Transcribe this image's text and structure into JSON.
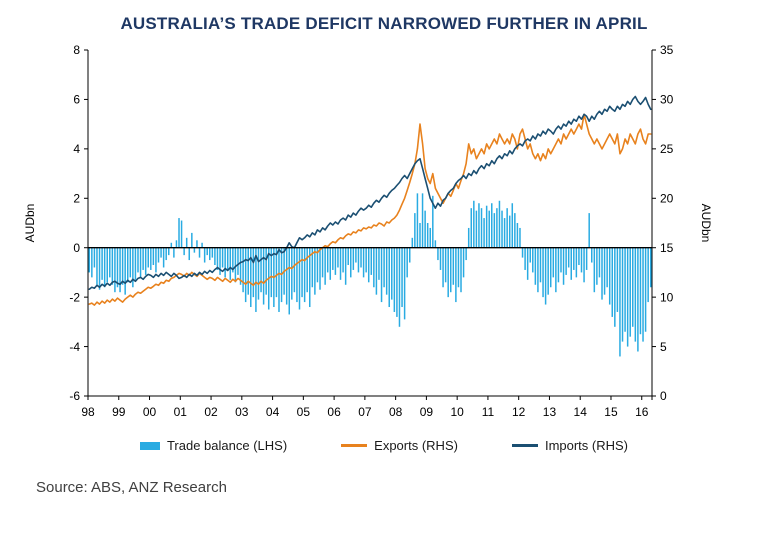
{
  "title": "AUSTRALIA’S TRADE DEFICIT NARROWED FURTHER IN APRIL",
  "source": "Source: ABS, ANZ Research",
  "chart_data": {
    "type": "bar",
    "subtype": "combo-bar-line-monthly",
    "x_unit": "monthly",
    "x_start": "1998-01",
    "x_end": "2016-04",
    "x_tick_labels": [
      "98",
      "99",
      "00",
      "01",
      "02",
      "03",
      "04",
      "05",
      "06",
      "07",
      "08",
      "09",
      "10",
      "11",
      "12",
      "13",
      "14",
      "15",
      "16"
    ],
    "left_axis": {
      "label": "AUDbn",
      "min": -6,
      "max": 8,
      "ticks": [
        8,
        6,
        4,
        2,
        0,
        -2,
        -4,
        -6
      ]
    },
    "right_axis": {
      "label": "AUDbn",
      "min": 0,
      "max": 35,
      "ticks": [
        35,
        30,
        25,
        20,
        15,
        10,
        5,
        0
      ]
    },
    "grid": "off",
    "legend_position": "bottom",
    "series": [
      {
        "name": "Trade balance (LHS)",
        "type": "bar",
        "axis": "left",
        "color": "#29abe2",
        "values": [
          -1.0,
          -1.2,
          -0.8,
          -1.5,
          -1.7,
          -1.3,
          -1.6,
          -1.4,
          -1.2,
          -1.5,
          -1.8,
          -1.6,
          -1.8,
          -1.5,
          -1.9,
          -1.4,
          -1.2,
          -1.6,
          -1.3,
          -1.0,
          -1.2,
          -0.9,
          -1.1,
          -0.8,
          -0.9,
          -0.7,
          -1.0,
          -0.6,
          -0.4,
          -0.8,
          -0.5,
          -0.3,
          0.2,
          -0.4,
          0.3,
          1.2,
          1.1,
          -0.3,
          0.4,
          -0.5,
          0.6,
          -0.2,
          0.3,
          -0.4,
          0.2,
          -0.6,
          -0.3,
          -0.5,
          -0.4,
          -0.7,
          -0.9,
          -1.1,
          -0.8,
          -1.2,
          -0.9,
          -1.3,
          -1.0,
          -1.4,
          -1.1,
          -1.5,
          -1.8,
          -2.2,
          -1.9,
          -2.4,
          -2.0,
          -2.6,
          -2.1,
          -1.8,
          -2.3,
          -1.9,
          -2.5,
          -2.0,
          -2.4,
          -2.0,
          -2.6,
          -2.2,
          -1.9,
          -2.3,
          -2.7,
          -2.1,
          -1.8,
          -2.2,
          -2.5,
          -2.0,
          -2.2,
          -1.8,
          -2.4,
          -1.6,
          -1.9,
          -1.4,
          -1.7,
          -1.2,
          -1.5,
          -1.0,
          -1.3,
          -0.9,
          -1.1,
          -0.8,
          -1.3,
          -1.0,
          -1.5,
          -0.7,
          -1.2,
          -0.9,
          -0.6,
          -1.0,
          -0.8,
          -1.2,
          -1.0,
          -1.4,
          -1.1,
          -1.6,
          -1.9,
          -1.3,
          -2.2,
          -1.6,
          -1.9,
          -2.4,
          -2.1,
          -2.6,
          -2.8,
          -3.2,
          -2.4,
          -2.9,
          -1.2,
          -0.6,
          0.4,
          1.4,
          2.2,
          1.0,
          2.2,
          1.5,
          1.0,
          0.8,
          2.1,
          0.3,
          -0.5,
          -0.9,
          -1.6,
          -1.4,
          -2.0,
          -1.8,
          -1.5,
          -2.2,
          -1.6,
          -1.8,
          -1.2,
          -0.5,
          0.8,
          1.6,
          1.9,
          1.5,
          1.8,
          1.6,
          1.2,
          1.7,
          1.5,
          1.8,
          1.4,
          1.6,
          1.9,
          1.5,
          1.2,
          1.6,
          1.3,
          1.8,
          1.4,
          1.0,
          0.8,
          -0.4,
          -0.9,
          -1.3,
          -0.6,
          -1.0,
          -1.5,
          -1.8,
          -1.4,
          -2.0,
          -2.3,
          -1.9,
          -1.6,
          -1.2,
          -1.8,
          -1.4,
          -1.0,
          -1.5,
          -1.1,
          -0.8,
          -1.3,
          -0.9,
          -1.2,
          -0.7,
          -1.0,
          -1.4,
          -0.9,
          1.4,
          -0.6,
          -1.8,
          -1.5,
          -1.2,
          -2.1,
          -1.9,
          -1.6,
          -2.3,
          -2.8,
          -3.2,
          -2.6,
          -4.4,
          -3.8,
          -3.4,
          -4.0,
          -3.6,
          -3.2,
          -3.8,
          -4.2,
          -3.5,
          -3.8,
          -3.4,
          -2.2,
          -1.6
        ]
      },
      {
        "name": "Exports (RHS)",
        "type": "line",
        "axis": "right",
        "color": "#e8821e",
        "values": [
          9.3,
          9.4,
          9.2,
          9.5,
          9.3,
          9.6,
          9.4,
          9.7,
          9.5,
          9.8,
          9.6,
          9.9,
          9.7,
          9.5,
          9.8,
          10.0,
          10.2,
          10.0,
          10.3,
          10.5,
          10.4,
          10.6,
          10.8,
          11.0,
          10.9,
          11.1,
          11.3,
          11.2,
          11.5,
          11.4,
          11.7,
          11.6,
          11.9,
          12.0,
          12.2,
          12.4,
          12.3,
          12.1,
          12.4,
          12.2,
          12.5,
          12.3,
          12.1,
          12.4,
          12.2,
          12.0,
          11.8,
          12.0,
          11.9,
          11.7,
          12.0,
          11.8,
          11.6,
          11.9,
          11.7,
          11.5,
          11.8,
          11.6,
          11.9,
          11.7,
          11.5,
          11.3,
          11.6,
          11.4,
          11.2,
          11.5,
          11.3,
          11.6,
          11.4,
          11.7,
          11.9,
          12.1,
          12.0,
          12.2,
          12.4,
          12.3,
          12.6,
          12.8,
          13.0,
          12.9,
          13.2,
          13.4,
          13.6,
          13.8,
          13.7,
          14.0,
          14.2,
          14.4,
          14.6,
          14.5,
          14.8,
          15.0,
          15.2,
          15.1,
          15.4,
          15.6,
          15.5,
          15.8,
          16.0,
          15.9,
          16.2,
          16.4,
          16.3,
          16.6,
          16.5,
          16.8,
          16.7,
          17.0,
          16.9,
          17.1,
          17.0,
          17.3,
          17.2,
          17.5,
          17.4,
          17.2,
          17.6,
          17.5,
          17.8,
          18.0,
          18.3,
          18.8,
          19.4,
          20.0,
          20.8,
          21.6,
          22.5,
          23.5,
          25.0,
          27.5,
          25.5,
          23.0,
          22.0,
          21.5,
          22.5,
          21.0,
          20.5,
          20.0,
          19.5,
          20.0,
          20.5,
          20.2,
          20.8,
          21.5,
          21.0,
          21.8,
          22.5,
          23.5,
          25.5,
          24.5,
          25.0,
          24.0,
          24.5,
          25.0,
          24.5,
          25.5,
          25.0,
          25.5,
          26.0,
          25.5,
          26.5,
          26.0,
          25.5,
          26.0,
          25.5,
          26.5,
          26.0,
          25.0,
          26.5,
          27.0,
          26.0,
          25.0,
          25.5,
          24.5,
          24.0,
          24.5,
          23.8,
          24.5,
          24.0,
          25.0,
          24.5,
          25.0,
          25.5,
          26.0,
          25.5,
          26.5,
          26.0,
          26.5,
          27.0,
          26.5,
          27.0,
          27.5,
          27.0,
          28.5,
          27.5,
          26.5,
          26.0,
          25.5,
          26.0,
          25.5,
          25.0,
          25.5,
          26.0,
          26.5,
          26.0,
          25.5,
          26.5,
          24.5,
          25.0,
          26.0,
          25.5,
          26.5,
          26.0,
          25.5,
          26.5,
          27.0,
          26.0,
          25.5,
          26.5,
          26.5
        ]
      },
      {
        "name": "Imports (RHS)",
        "type": "line",
        "axis": "right",
        "color": "#1b4f72",
        "values": [
          10.8,
          11.0,
          10.9,
          11.2,
          11.0,
          11.3,
          11.1,
          11.4,
          11.2,
          11.5,
          11.6,
          11.4,
          11.3,
          11.6,
          11.4,
          11.7,
          11.5,
          11.8,
          11.6,
          11.9,
          12.0,
          11.8,
          12.1,
          12.3,
          12.2,
          12.0,
          12.3,
          12.1,
          12.4,
          12.2,
          12.5,
          12.3,
          12.1,
          12.4,
          12.2,
          11.9,
          12.0,
          12.2,
          12.0,
          12.3,
          12.1,
          12.4,
          12.2,
          12.5,
          12.3,
          12.6,
          12.4,
          12.7,
          12.5,
          12.8,
          13.0,
          12.8,
          12.6,
          12.9,
          12.7,
          13.0,
          12.8,
          13.1,
          13.3,
          13.5,
          13.6,
          13.8,
          13.7,
          14.0,
          13.5,
          14.2,
          13.6,
          13.8,
          14.0,
          13.8,
          14.4,
          14.2,
          14.4,
          14.3,
          14.8,
          14.5,
          14.6,
          15.0,
          15.5,
          15.1,
          15.0,
          15.5,
          16.0,
          15.8,
          16.0,
          16.3,
          16.1,
          16.5,
          16.3,
          16.8,
          16.6,
          17.0,
          16.8,
          17.2,
          17.5,
          17.3,
          17.6,
          17.4,
          17.8,
          18.0,
          17.8,
          18.3,
          18.1,
          18.5,
          18.3,
          18.7,
          19.0,
          18.8,
          19.0,
          19.3,
          19.1,
          19.5,
          19.8,
          19.6,
          20.0,
          20.3,
          20.1,
          20.5,
          20.8,
          21.0,
          21.3,
          21.6,
          22.0,
          22.3,
          22.0,
          22.5,
          23.0,
          23.5,
          23.8,
          24.0,
          23.0,
          22.0,
          21.0,
          20.0,
          19.5,
          19.0,
          19.5,
          19.2,
          19.8,
          20.0,
          20.5,
          20.8,
          21.0,
          21.5,
          21.8,
          22.0,
          22.3,
          22.0,
          22.5,
          22.3,
          22.8,
          22.5,
          23.0,
          23.3,
          23.0,
          23.5,
          23.3,
          23.8,
          23.5,
          24.0,
          24.3,
          24.0,
          24.5,
          24.3,
          24.8,
          24.5,
          25.0,
          25.3,
          25.5,
          25.3,
          25.8,
          26.0,
          25.8,
          26.3,
          26.0,
          26.5,
          26.3,
          26.8,
          26.5,
          27.0,
          26.8,
          26.5,
          27.0,
          27.3,
          27.0,
          27.5,
          27.3,
          27.8,
          27.5,
          28.0,
          27.8,
          28.3,
          28.0,
          28.5,
          28.3,
          27.8,
          28.3,
          28.0,
          28.5,
          28.8,
          28.5,
          29.0,
          28.8,
          29.3,
          29.0,
          28.8,
          29.3,
          29.0,
          29.5,
          29.3,
          29.8,
          29.5,
          30.0,
          30.3,
          29.8,
          29.5,
          29.8,
          30.2,
          29.5,
          29.0
        ]
      }
    ]
  }
}
